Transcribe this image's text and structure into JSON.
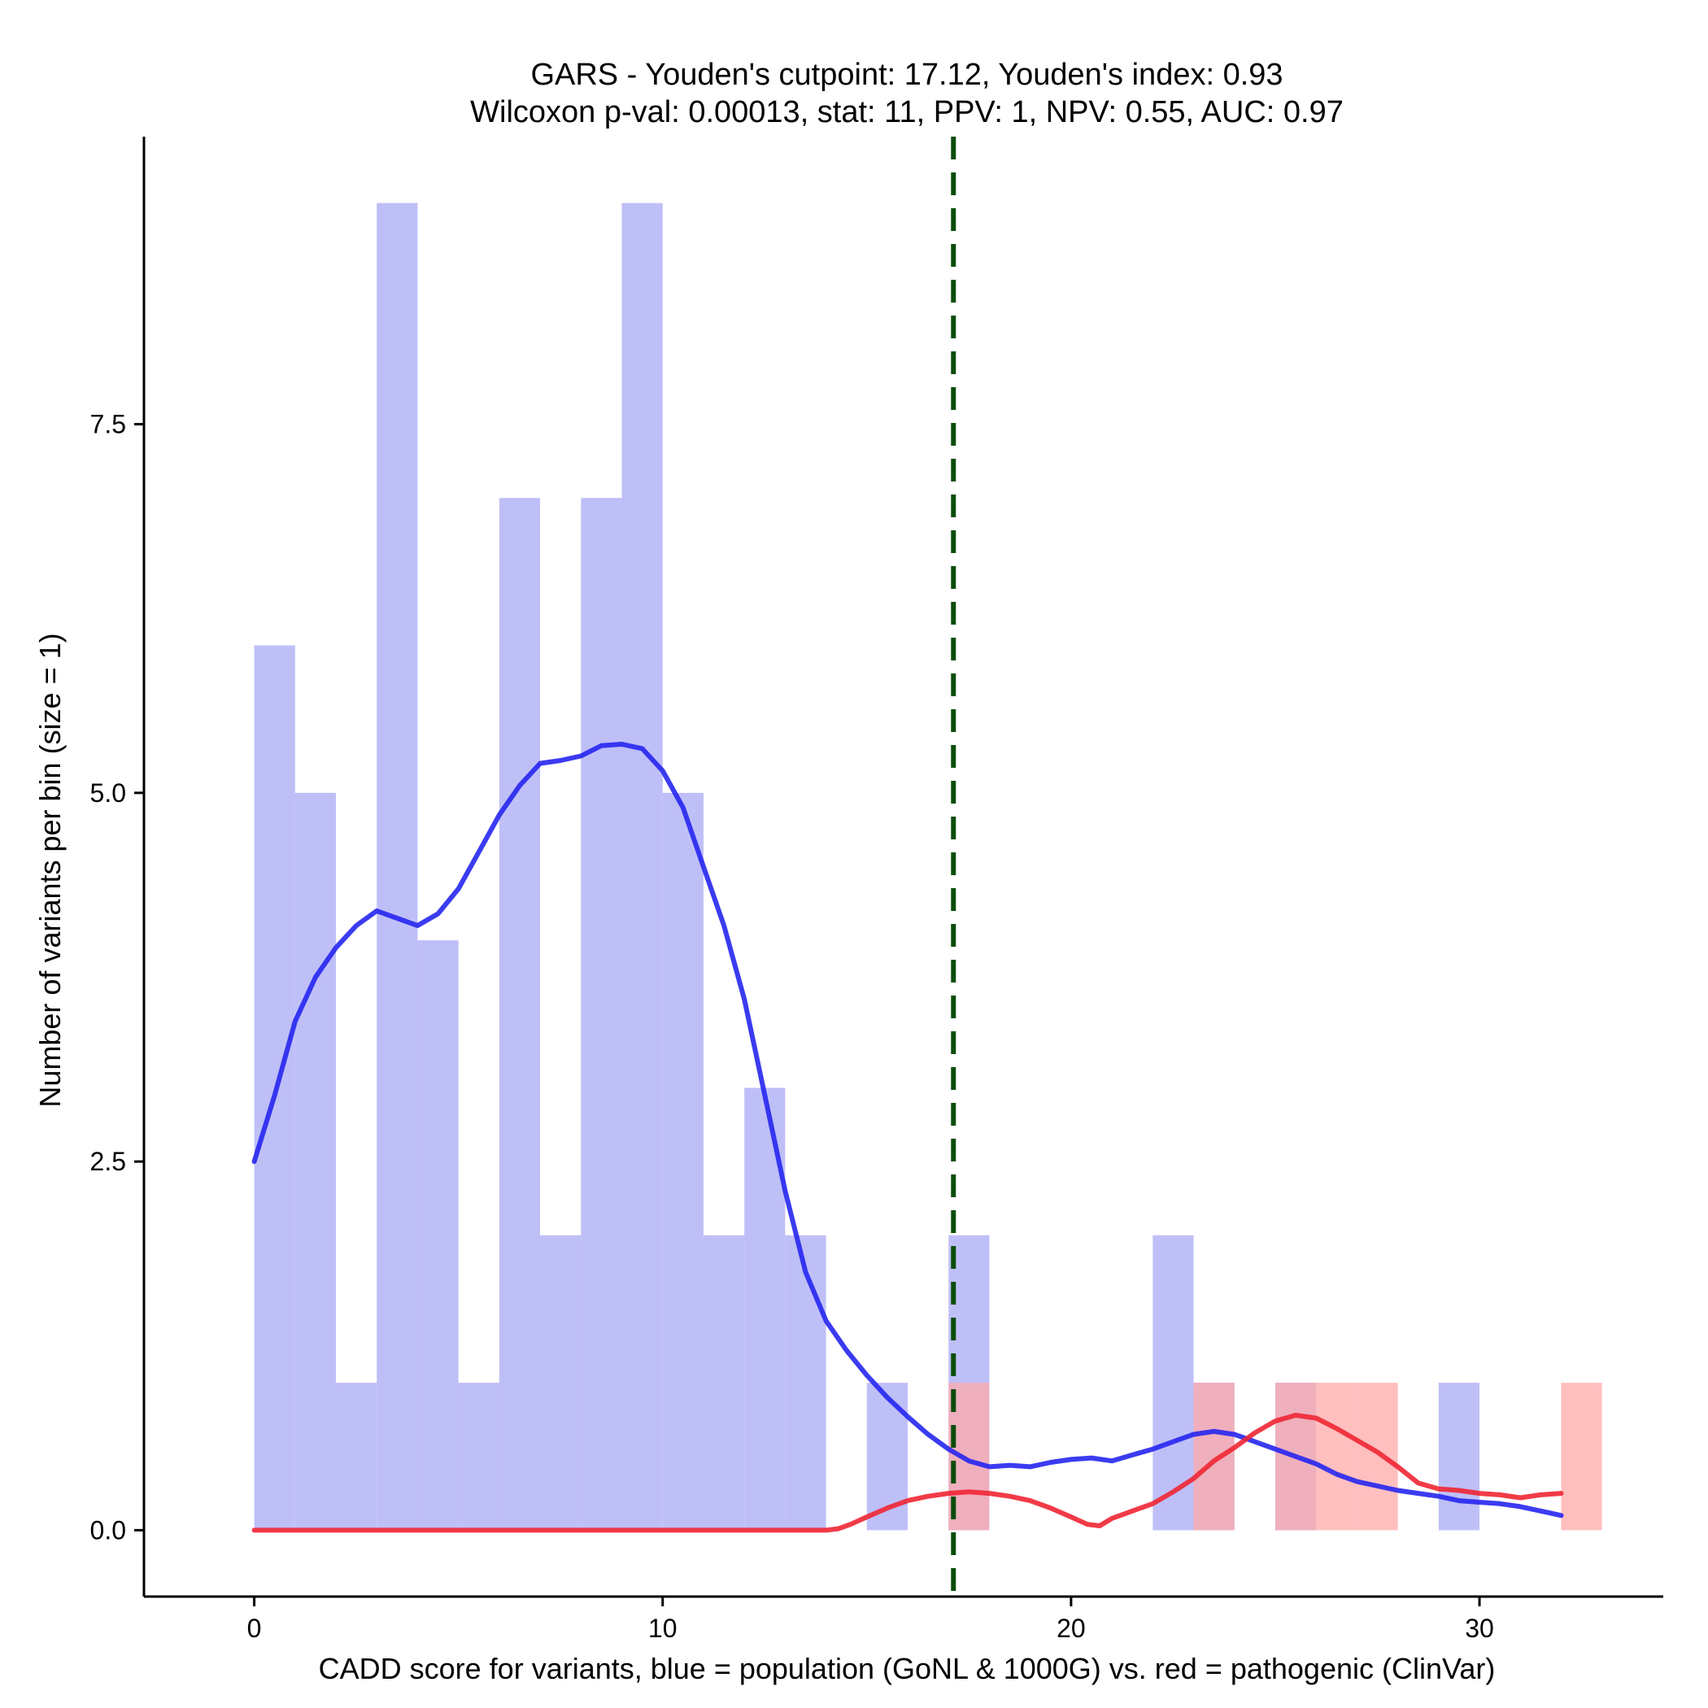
{
  "chart_data": {
    "type": "histogram-density",
    "title_line1": "GARS - Youden's cutpoint: 17.12, Youden's index: 0.93",
    "title_line2": "Wilcoxon p-val: 0.00013, stat: 11, PPV: 1, NPV: 0.55, AUC: 0.97",
    "xlabel": "CADD score for variants, blue = population (GoNL & 1000G) vs. red = pathogenic (ClinVar)",
    "ylabel": "Number of variants per bin (size = 1)",
    "xlim": [
      -2.7,
      34.5
    ],
    "ylim": [
      -0.45,
      9.45
    ],
    "x_ticks": [
      0,
      10,
      20,
      30
    ],
    "x_tick_labels": [
      "0",
      "10",
      "20",
      "30"
    ],
    "y_ticks": [
      0,
      2.5,
      5,
      7.5
    ],
    "y_tick_labels": [
      "0.0",
      "2.5",
      "5.0",
      "7.5"
    ],
    "cutpoint": 17.12,
    "colors": {
      "population_bar": "#aaaaf5",
      "pathogenic_bar": "#ffaaaa",
      "population_line": "#2626f0",
      "pathogenic_line": "#f02633",
      "cutpoint_line": "#0a4d0a"
    },
    "series": [
      {
        "name": "population (GoNL & 1000G)",
        "bins": [
          {
            "x0": 0,
            "x1": 1,
            "count": 6
          },
          {
            "x0": 1,
            "x1": 2,
            "count": 5
          },
          {
            "x0": 2,
            "x1": 3,
            "count": 1
          },
          {
            "x0": 3,
            "x1": 4,
            "count": 9
          },
          {
            "x0": 4,
            "x1": 5,
            "count": 4
          },
          {
            "x0": 5,
            "x1": 6,
            "count": 1
          },
          {
            "x0": 6,
            "x1": 7,
            "count": 7
          },
          {
            "x0": 7,
            "x1": 8,
            "count": 2
          },
          {
            "x0": 8,
            "x1": 9,
            "count": 7
          },
          {
            "x0": 9,
            "x1": 10,
            "count": 9
          },
          {
            "x0": 10,
            "x1": 11,
            "count": 5
          },
          {
            "x0": 11,
            "x1": 12,
            "count": 2
          },
          {
            "x0": 12,
            "x1": 13,
            "count": 3
          },
          {
            "x0": 13,
            "x1": 14,
            "count": 2
          },
          {
            "x0": 15,
            "x1": 16,
            "count": 1
          },
          {
            "x0": 17,
            "x1": 18,
            "count": 2
          },
          {
            "x0": 22,
            "x1": 23,
            "count": 2
          },
          {
            "x0": 23,
            "x1": 24,
            "count": 1
          },
          {
            "x0": 25,
            "x1": 26,
            "count": 1
          },
          {
            "x0": 29,
            "x1": 30,
            "count": 1
          }
        ],
        "density_curve": [
          [
            0,
            2.5
          ],
          [
            0.5,
            2.95
          ],
          [
            1,
            3.45
          ],
          [
            1.5,
            3.75
          ],
          [
            2,
            3.95
          ],
          [
            2.5,
            4.1
          ],
          [
            3,
            4.2
          ],
          [
            3.5,
            4.15
          ],
          [
            4,
            4.1
          ],
          [
            4.5,
            4.18
          ],
          [
            5,
            4.35
          ],
          [
            5.5,
            4.6
          ],
          [
            6,
            4.85
          ],
          [
            6.5,
            5.05
          ],
          [
            7,
            5.2
          ],
          [
            7.5,
            5.22
          ],
          [
            8,
            5.25
          ],
          [
            8.5,
            5.32
          ],
          [
            9,
            5.33
          ],
          [
            9.5,
            5.3
          ],
          [
            10,
            5.15
          ],
          [
            10.5,
            4.9
          ],
          [
            11,
            4.5
          ],
          [
            11.5,
            4.1
          ],
          [
            12,
            3.6
          ],
          [
            12.5,
            2.95
          ],
          [
            13,
            2.3
          ],
          [
            13.5,
            1.75
          ],
          [
            14,
            1.42
          ],
          [
            14.5,
            1.22
          ],
          [
            15,
            1.05
          ],
          [
            15.5,
            0.9
          ],
          [
            16,
            0.77
          ],
          [
            16.5,
            0.65
          ],
          [
            17,
            0.55
          ],
          [
            17.5,
            0.47
          ],
          [
            18,
            0.43
          ],
          [
            18.5,
            0.44
          ],
          [
            19,
            0.43
          ],
          [
            19.5,
            0.46
          ],
          [
            20,
            0.48
          ],
          [
            20.5,
            0.49
          ],
          [
            21,
            0.47
          ],
          [
            21.5,
            0.51
          ],
          [
            22,
            0.55
          ],
          [
            22.5,
            0.6
          ],
          [
            23,
            0.65
          ],
          [
            23.5,
            0.67
          ],
          [
            24,
            0.65
          ],
          [
            24.5,
            0.6
          ],
          [
            25,
            0.55
          ],
          [
            25.5,
            0.5
          ],
          [
            26,
            0.45
          ],
          [
            26.5,
            0.38
          ],
          [
            27,
            0.33
          ],
          [
            27.5,
            0.3
          ],
          [
            28,
            0.27
          ],
          [
            28.5,
            0.25
          ],
          [
            29,
            0.23
          ],
          [
            29.5,
            0.2
          ],
          [
            30,
            0.19
          ],
          [
            30.5,
            0.18
          ],
          [
            31,
            0.16
          ],
          [
            31.5,
            0.13
          ],
          [
            32,
            0.1
          ]
        ]
      },
      {
        "name": "pathogenic (ClinVar)",
        "bins": [
          {
            "x0": 17,
            "x1": 18,
            "count": 1
          },
          {
            "x0": 23,
            "x1": 24,
            "count": 1
          },
          {
            "x0": 25,
            "x1": 26,
            "count": 1
          },
          {
            "x0": 26,
            "x1": 27,
            "count": 1
          },
          {
            "x0": 27,
            "x1": 28,
            "count": 1
          },
          {
            "x0": 32,
            "x1": 33,
            "count": 1
          }
        ],
        "density_curve": [
          [
            0,
            0
          ],
          [
            5,
            0
          ],
          [
            10,
            0
          ],
          [
            14,
            0
          ],
          [
            14.3,
            0.01
          ],
          [
            14.6,
            0.04
          ],
          [
            15,
            0.09
          ],
          [
            15.5,
            0.15
          ],
          [
            16,
            0.2
          ],
          [
            16.5,
            0.23
          ],
          [
            17,
            0.25
          ],
          [
            17.5,
            0.26
          ],
          [
            18,
            0.25
          ],
          [
            18.5,
            0.23
          ],
          [
            19,
            0.2
          ],
          [
            19.5,
            0.15
          ],
          [
            20,
            0.09
          ],
          [
            20.4,
            0.04
          ],
          [
            20.7,
            0.03
          ],
          [
            21,
            0.08
          ],
          [
            21.5,
            0.13
          ],
          [
            22,
            0.18
          ],
          [
            22.5,
            0.26
          ],
          [
            23,
            0.35
          ],
          [
            23.5,
            0.47
          ],
          [
            24,
            0.56
          ],
          [
            24.5,
            0.66
          ],
          [
            25,
            0.74
          ],
          [
            25.5,
            0.78
          ],
          [
            26,
            0.76
          ],
          [
            26.5,
            0.69
          ],
          [
            27,
            0.61
          ],
          [
            27.5,
            0.53
          ],
          [
            28,
            0.43
          ],
          [
            28.5,
            0.32
          ],
          [
            29,
            0.28
          ],
          [
            29.5,
            0.27
          ],
          [
            30,
            0.25
          ],
          [
            30.5,
            0.24
          ],
          [
            31,
            0.22
          ],
          [
            31.5,
            0.24
          ],
          [
            32,
            0.25
          ]
        ]
      }
    ]
  }
}
